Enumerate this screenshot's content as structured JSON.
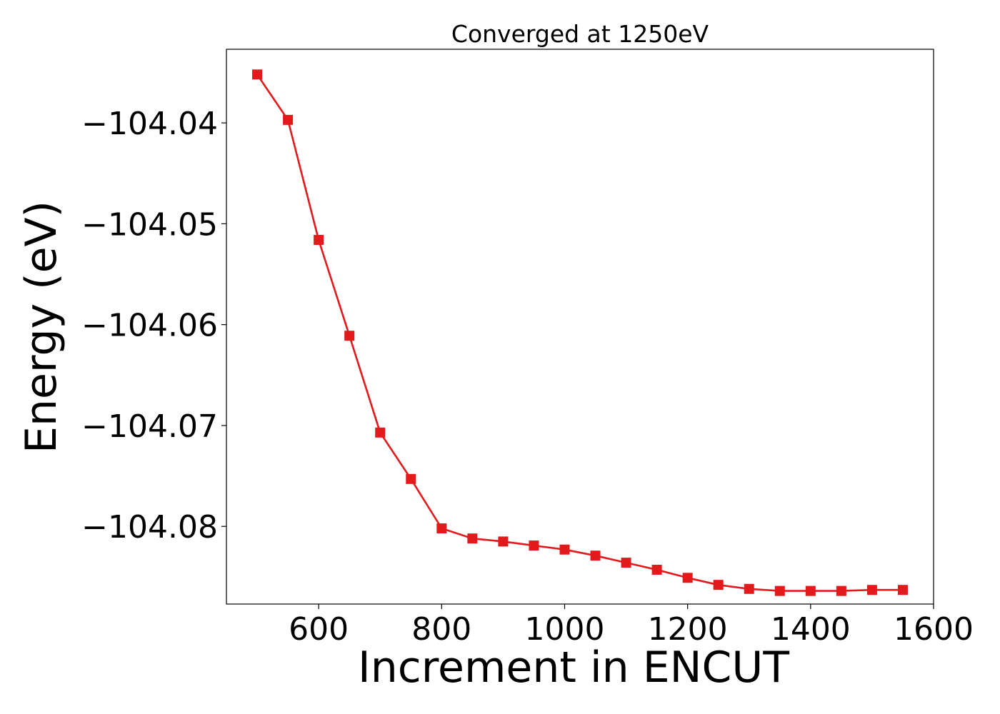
{
  "chart_data": {
    "type": "line",
    "title": "Converged at 1250eV",
    "xlabel": "Increment in ENCUT",
    "ylabel": "Energy (eV)",
    "xlim": [
      450,
      1600
    ],
    "ylim": [
      -104.0877,
      -104.0327
    ],
    "x_ticks": [
      {
        "value": 600,
        "label": "600"
      },
      {
        "value": 800,
        "label": "800"
      },
      {
        "value": 1000,
        "label": "1000"
      },
      {
        "value": 1200,
        "label": "1200"
      },
      {
        "value": 1400,
        "label": "1400"
      },
      {
        "value": 1600,
        "label": "1600"
      }
    ],
    "y_ticks": [
      {
        "value": -104.04,
        "label": "−104.04"
      },
      {
        "value": -104.05,
        "label": "−104.05"
      },
      {
        "value": -104.06,
        "label": "−104.06"
      },
      {
        "value": -104.07,
        "label": "−104.07"
      },
      {
        "value": -104.08,
        "label": "−104.08"
      }
    ],
    "grid": false,
    "series": [
      {
        "color": "#e31a1c",
        "marker": "square",
        "x": [
          500,
          550,
          600,
          650,
          700,
          750,
          800,
          850,
          900,
          950,
          1000,
          1050,
          1100,
          1150,
          1200,
          1250,
          1300,
          1350,
          1400,
          1450,
          1500,
          1550
        ],
        "y": [
          -104.0352,
          -104.0397,
          -104.0516,
          -104.0611,
          -104.0707,
          -104.0753,
          -104.0802,
          -104.0812,
          -104.0815,
          -104.0819,
          -104.0823,
          -104.0829,
          -104.0836,
          -104.0843,
          -104.0851,
          -104.0858,
          -104.0862,
          -104.0864,
          -104.0864,
          -104.0864,
          -104.0863,
          -104.0863
        ]
      }
    ]
  }
}
